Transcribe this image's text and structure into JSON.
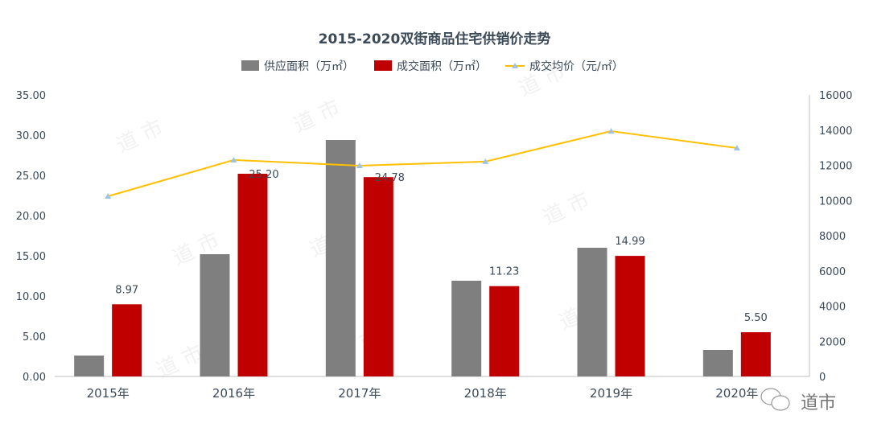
{
  "chart_data": {
    "type": "bar",
    "title": "2015-2020双街商品住宅供销价走势",
    "categories": [
      "2015年",
      "2016年",
      "2017年",
      "2018年",
      "2019年",
      "2020年"
    ],
    "series": [
      {
        "name": "供应面积（万㎡）",
        "type": "bar",
        "axis": "left",
        "color": "#7f7f7f",
        "values": [
          2.6,
          15.2,
          29.4,
          11.9,
          16.0,
          3.3
        ],
        "data_labels": []
      },
      {
        "name": "成交面积（万㎡）",
        "type": "bar",
        "axis": "left",
        "color": "#c00000",
        "values": [
          8.97,
          25.2,
          24.78,
          11.23,
          14.99,
          5.5
        ],
        "data_labels": [
          "8.97",
          "25.20",
          "24.78",
          "11.23",
          "14.99",
          "5.50"
        ]
      },
      {
        "name": "成交均价（元/㎡）",
        "type": "line",
        "axis": "right",
        "color": "#ffc000",
        "marker_color": "#9dc3e6",
        "values": [
          10240,
          12300,
          11980,
          12210,
          13940,
          12980
        ]
      }
    ],
    "y_left": {
      "lim": [
        0,
        35
      ],
      "ticks": [
        "0.00",
        "5.00",
        "10.00",
        "15.00",
        "20.00",
        "25.00",
        "30.00",
        "35.00"
      ]
    },
    "y_right": {
      "lim": [
        0,
        16000
      ],
      "ticks": [
        "0",
        "2000",
        "4000",
        "6000",
        "8000",
        "10000",
        "12000",
        "14000",
        "16000"
      ]
    },
    "legend": "top",
    "grid": false
  },
  "watermark": "道 市",
  "logo_text": "道市"
}
